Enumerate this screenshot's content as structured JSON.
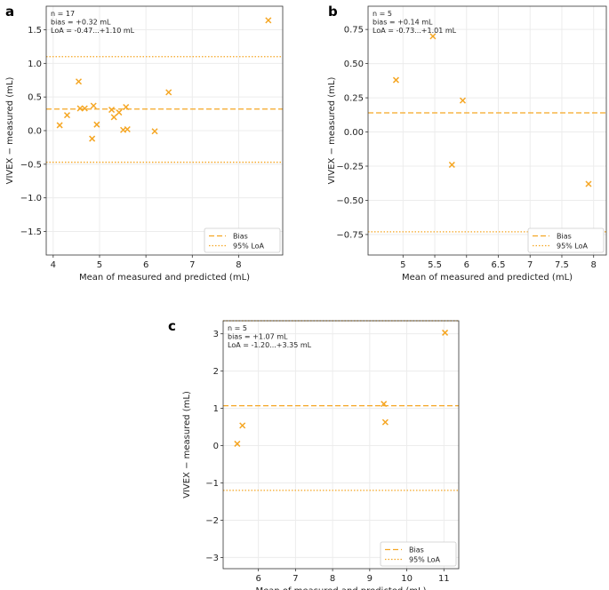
{
  "colors": {
    "accent": "#f5a623",
    "grid": "#ececec",
    "frame": "#333333"
  },
  "chart_data": [
    {
      "panel": "a",
      "type": "scatter",
      "xlabel": "Mean of measured and predicted (mL)",
      "ylabel": "VIVEX − measured (mL)",
      "xlim": [
        3.85,
        8.95
      ],
      "ylim": [
        -1.85,
        1.85
      ],
      "xticks": [
        4,
        5,
        6,
        7,
        8
      ],
      "yticks": [
        -1.5,
        -1.0,
        -0.5,
        0.0,
        0.5,
        1.0,
        1.5
      ],
      "ytick_labels": [
        "−1.5",
        "−1.0",
        "−0.5",
        "0.0",
        "0.5",
        "1.0",
        "1.5"
      ],
      "stats_lines": [
        "n = 17",
        "bias = +0.32 mL",
        "LoA = -0.47...+1.10 mL"
      ],
      "bias": 0.32,
      "loa": [
        -0.47,
        1.1
      ],
      "points": [
        {
          "x": 4.14,
          "y": 0.08
        },
        {
          "x": 4.3,
          "y": 0.23
        },
        {
          "x": 4.55,
          "y": 0.73
        },
        {
          "x": 4.58,
          "y": 0.33
        },
        {
          "x": 4.68,
          "y": 0.33
        },
        {
          "x": 4.84,
          "y": -0.12
        },
        {
          "x": 4.87,
          "y": 0.37
        },
        {
          "x": 4.94,
          "y": 0.09
        },
        {
          "x": 5.26,
          "y": 0.31
        },
        {
          "x": 5.31,
          "y": 0.2
        },
        {
          "x": 5.42,
          "y": 0.27
        },
        {
          "x": 5.51,
          "y": 0.01
        },
        {
          "x": 5.57,
          "y": 0.35
        },
        {
          "x": 5.6,
          "y": 0.02
        },
        {
          "x": 6.19,
          "y": -0.01
        },
        {
          "x": 6.49,
          "y": 0.57
        },
        {
          "x": 8.64,
          "y": 1.64
        }
      ],
      "legend": [
        "Bias",
        "95% LoA"
      ]
    },
    {
      "panel": "b",
      "type": "scatter",
      "xlabel": "Mean of measured and predicted (mL)",
      "ylabel": "VIVEX − measured (mL)",
      "xlim": [
        4.45,
        8.2
      ],
      "ylim": [
        -0.9,
        0.92
      ],
      "xticks": [
        5.0,
        5.5,
        6.0,
        6.5,
        7.0,
        7.5,
        8.0
      ],
      "yticks": [
        -0.75,
        -0.5,
        -0.25,
        0.0,
        0.25,
        0.5,
        0.75
      ],
      "ytick_labels": [
        "−0.75",
        "−0.50",
        "−0.25",
        "0.00",
        "0.25",
        "0.50",
        "0.75"
      ],
      "stats_lines": [
        "n = 5",
        "bias = +0.14 mL",
        "LoA = -0.73...+1.01 mL"
      ],
      "bias": 0.14,
      "loa": [
        -0.73,
        1.01
      ],
      "points": [
        {
          "x": 4.89,
          "y": 0.38
        },
        {
          "x": 5.47,
          "y": 0.7
        },
        {
          "x": 5.77,
          "y": -0.24
        },
        {
          "x": 5.94,
          "y": 0.23
        },
        {
          "x": 7.92,
          "y": -0.38
        }
      ],
      "legend": [
        "Bias",
        "95% LoA"
      ]
    },
    {
      "panel": "c",
      "type": "scatter",
      "xlabel": "Mean of measured and predicted (mL)",
      "ylabel": "VIVEX − measured (mL)",
      "xlim": [
        5.05,
        11.4
      ],
      "ylim": [
        -3.3,
        3.35
      ],
      "xticks": [
        6,
        7,
        8,
        9,
        10,
        11
      ],
      "yticks": [
        -3,
        -2,
        -1,
        0,
        1,
        2,
        3
      ],
      "ytick_labels": [
        "−3",
        "−2",
        "−1",
        "0",
        "1",
        "2",
        "3"
      ],
      "stats_lines": [
        "n = 5",
        "bias = +1.07 mL",
        "LoA = -1.20...+3.35 mL"
      ],
      "bias": 1.07,
      "loa": [
        -1.2,
        3.35
      ],
      "points": [
        {
          "x": 5.43,
          "y": 0.05
        },
        {
          "x": 5.57,
          "y": 0.54
        },
        {
          "x": 9.38,
          "y": 1.12
        },
        {
          "x": 9.42,
          "y": 0.63
        },
        {
          "x": 11.03,
          "y": 3.03
        }
      ],
      "legend": [
        "Bias",
        "95% LoA"
      ]
    }
  ]
}
